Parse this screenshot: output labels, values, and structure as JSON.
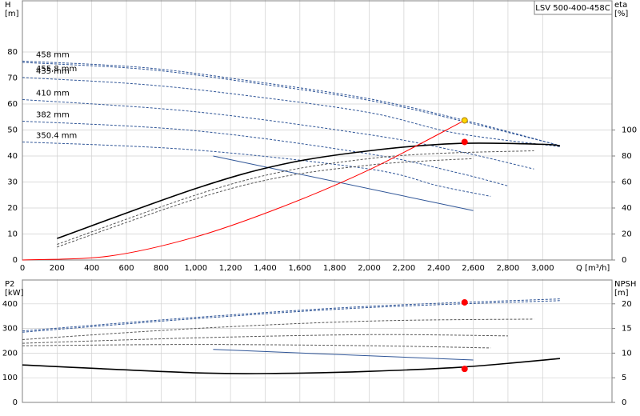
{
  "chart_data": [
    {
      "type": "line",
      "title": "LSV 500-400-458C",
      "y_label": "H",
      "y_unit": "[m]",
      "y2_label": "eta",
      "y2_unit": "[%]",
      "x_label": "Q [m³/h]",
      "xlim": [
        0,
        3400
      ],
      "ylim": [
        0,
        100
      ],
      "y2lim": [
        0,
        200
      ],
      "grid": true,
      "xticks": [
        0,
        200,
        400,
        600,
        800,
        {
          "value": 1000,
          "label": "1,000"
        },
        {
          "value": 1200,
          "label": "1,200"
        },
        {
          "value": 1400,
          "label": "1,400"
        },
        {
          "value": 1600,
          "label": "1,600"
        },
        {
          "value": 1800,
          "label": "1,800"
        },
        {
          "value": 2000,
          "label": "2,000"
        },
        {
          "value": 2200,
          "label": "2,200"
        },
        {
          "value": 2400,
          "label": "2,400"
        },
        {
          "value": 2600,
          "label": "2,600"
        },
        {
          "value": 2800,
          "label": "2,800"
        },
        {
          "value": 3000,
          "label": "3,000"
        }
      ],
      "yticks": [
        0,
        10,
        20,
        30,
        40,
        50,
        60,
        70,
        80
      ],
      "y2ticks": [
        0,
        20,
        40,
        60,
        80,
        100
      ],
      "series": [
        {
          "name": "458 mm",
          "color": "#2f5597",
          "style": "dashed",
          "x": [
            0,
            700,
            1300,
            2000,
            2550,
            3100
          ],
          "values": [
            76.5,
            74,
            69,
            62,
            53.7,
            44
          ]
        },
        {
          "name": "455,8 mm",
          "color": "#2f5597",
          "style": "dashed",
          "x": [
            0,
            700,
            1300,
            2000,
            2550,
            3100
          ],
          "values": [
            76,
            73.4,
            68.4,
            61.4,
            53.2,
            44
          ]
        },
        {
          "name": "435 mm",
          "color": "#2f5597",
          "style": "dashed",
          "x": [
            0,
            700,
            1300,
            2000,
            2500,
            3100
          ],
          "values": [
            70.2,
            67.5,
            63.2,
            56.7,
            48.8,
            43.6
          ]
        },
        {
          "name": "410 mm",
          "color": "#2f5597",
          "style": "dashed",
          "x": [
            0,
            1000,
            2000,
            2500,
            2950
          ],
          "values": [
            61.7,
            57,
            48.2,
            42,
            35
          ]
        },
        {
          "name": "382 mm",
          "color": "#2f5597",
          "style": "dashed",
          "x": [
            0,
            1000,
            2000,
            2500,
            2800
          ],
          "values": [
            53.4,
            49.7,
            40.8,
            33.7,
            28.5
          ]
        },
        {
          "name": "350.4 mm",
          "color": "#2f5597",
          "style": "dashed",
          "x": [
            0,
            1000,
            2000,
            2400,
            2700
          ],
          "values": [
            45.4,
            42.3,
            35,
            28.5,
            24.5
          ]
        },
        {
          "color": "#2f5597",
          "style": "solid",
          "x": [
            1100,
            2600
          ],
          "values": [
            40,
            19
          ]
        },
        {
          "color": "#000000",
          "style": "solid",
          "axis": "y2",
          "x": [
            200,
            1000,
            1500,
            2000,
            2500,
            3000,
            3100
          ],
          "values": [
            16.6,
            55,
            73.6,
            84,
            89.6,
            89,
            87.7
          ]
        },
        {
          "color": "#555555",
          "style": "dashed",
          "axis": "y2",
          "x": [
            200,
            1000,
            1500,
            2000,
            2400,
            2950
          ],
          "values": [
            12,
            50,
            68,
            78,
            82,
            84
          ]
        },
        {
          "color": "#555555",
          "style": "dashed",
          "axis": "y2",
          "x": [
            200,
            1000,
            1500,
            2000,
            2300,
            2600
          ],
          "values": [
            10,
            47,
            64,
            73,
            76,
            78
          ]
        },
        {
          "color": "#ff0000",
          "style": "solid",
          "x": [
            0,
            500,
            1000,
            1500,
            2000,
            2550
          ],
          "values": [
            0,
            1.5,
            8.9,
            20.5,
            34.7,
            53.7
          ]
        }
      ],
      "markers": [
        {
          "x": 2550,
          "y": 53.7,
          "color": "#ffd700"
        },
        {
          "x": 2550,
          "y": 90.8,
          "axis": "y2",
          "color": "#ff0000"
        }
      ]
    },
    {
      "type": "line",
      "y_label": "P2",
      "y_unit": "[kW]",
      "y2_label": "NPSH",
      "y2_unit": "[m]",
      "xlim": [
        0,
        3400
      ],
      "ylim": [
        0,
        500
      ],
      "y2lim": [
        0,
        25
      ],
      "grid": true,
      "yticks": [
        0,
        100,
        200,
        300,
        400
      ],
      "y2ticks": [
        0,
        5,
        10,
        15,
        20
      ],
      "series": [
        {
          "color": "#2f5597",
          "style": "dashed",
          "x": [
            0,
            1000,
            2000,
            3100
          ],
          "values": [
            290,
            345,
            390,
            420
          ]
        },
        {
          "color": "#2f5597",
          "style": "dashed",
          "x": [
            0,
            1000,
            2000,
            3100
          ],
          "values": [
            285,
            340,
            385,
            413
          ]
        },
        {
          "color": "#555555",
          "style": "dashed",
          "x": [
            0,
            1000,
            2000,
            2950
          ],
          "values": [
            255,
            300,
            330,
            338
          ]
        },
        {
          "color": "#555555",
          "style": "dashed",
          "x": [
            0,
            1000,
            2000,
            2800
          ],
          "values": [
            240,
            262,
            275,
            270
          ]
        },
        {
          "color": "#555555",
          "style": "dashed",
          "x": [
            0,
            1000,
            2000,
            2700
          ],
          "values": [
            230,
            235,
            230,
            221
          ]
        },
        {
          "color": "#2f5597",
          "style": "solid",
          "x": [
            1100,
            2600
          ],
          "values": [
            215,
            172
          ]
        },
        {
          "color": "#000000",
          "style": "solid",
          "axis": "y2",
          "x": [
            0,
            1000,
            1500,
            2000,
            2550,
            3100
          ],
          "values": [
            7.6,
            6.0,
            5.9,
            6.3,
            7.2,
            8.9
          ]
        }
      ],
      "markers": [
        {
          "x": 2550,
          "y": 406,
          "color": "#ff0000"
        },
        {
          "x": 2550,
          "y": 6.8,
          "axis": "y2",
          "color": "#ff0000"
        }
      ]
    }
  ]
}
